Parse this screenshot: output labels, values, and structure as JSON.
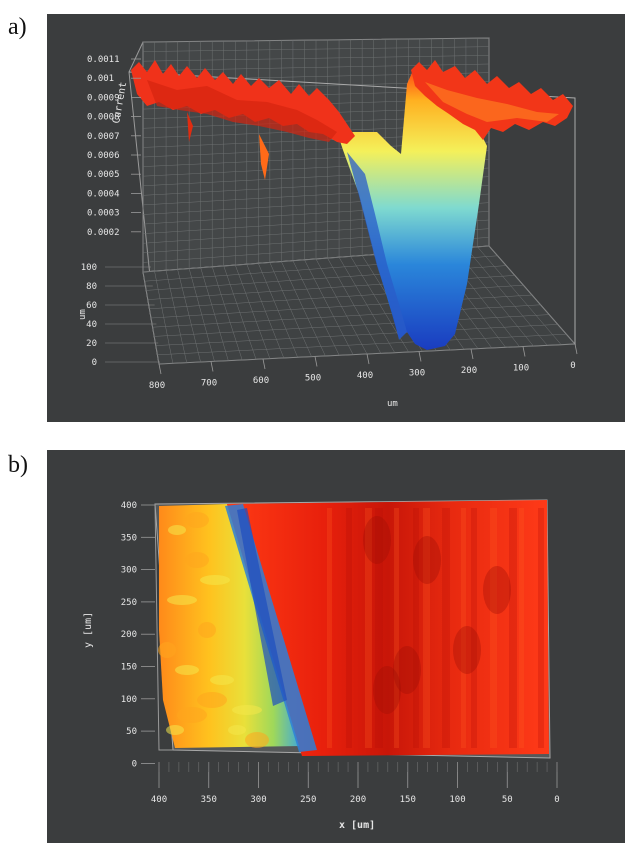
{
  "panels": {
    "a": {
      "label": "a)",
      "z_axis_title": "Current",
      "z_ticks": [
        "0.0011",
        "0.001",
        "0.0009",
        "0.0008",
        "0.0007",
        "0.0006",
        "0.0005",
        "0.0004",
        "0.0003",
        "0.0002"
      ],
      "y_axis_title": "um",
      "y_ticks": [
        "100",
        "80",
        "60",
        "40",
        "20",
        "0"
      ],
      "x_axis_title": "um",
      "x_ticks": [
        "800",
        "700",
        "600",
        "500",
        "400",
        "300",
        "200",
        "100",
        "0"
      ]
    },
    "b": {
      "label": "b)",
      "y_axis_title": "y [um]",
      "y_ticks": [
        "400",
        "350",
        "300",
        "250",
        "200",
        "150",
        "100",
        "50",
        "0"
      ],
      "x_axis_title": "x [um]",
      "x_ticks": [
        "400",
        "350",
        "300",
        "250",
        "200",
        "150",
        "100",
        "50",
        "0"
      ]
    }
  },
  "chart_data": [
    {
      "type": "area",
      "view": "3d-surface",
      "xlabel": "um",
      "ylabel": "um",
      "zlabel": "Current",
      "xlim": [
        800,
        0
      ],
      "ylim": [
        0,
        100
      ],
      "zlim": [
        0.0002,
        0.0011
      ],
      "colormap": "jet",
      "grid": true,
      "profile_along_x": {
        "x": [
          800,
          750,
          700,
          650,
          600,
          550,
          500,
          450,
          420,
          400,
          380,
          360,
          340,
          320,
          300,
          280,
          260,
          250,
          200,
          150,
          100,
          50,
          0
        ],
        "current": [
          0.00106,
          0.00104,
          0.00103,
          0.00102,
          0.00101,
          0.001,
          0.00098,
          0.00096,
          0.0007,
          0.0004,
          0.00022,
          0.00018,
          0.00017,
          0.00018,
          0.00025,
          0.0006,
          0.00095,
          0.00102,
          0.00101,
          0.001,
          0.00098,
          0.00097,
          0.00095
        ]
      }
    },
    {
      "type": "heatmap",
      "view": "top-down",
      "xlabel": "x [um]",
      "ylabel": "y [um]",
      "xlim": [
        400,
        0
      ],
      "ylim": [
        0,
        400
      ],
      "colormap": "jet",
      "boundary_blue_band_x": {
        "y": [
          0,
          100,
          200,
          300,
          400
        ],
        "x": [
          250,
          270,
          290,
          315,
          335
        ]
      }
    }
  ]
}
